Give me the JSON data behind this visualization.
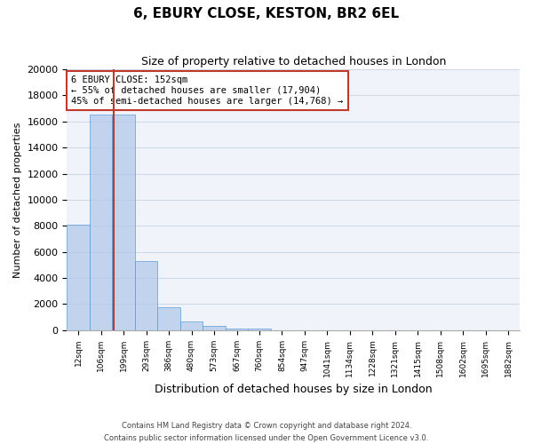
{
  "title": "6, EBURY CLOSE, KESTON, BR2 6EL",
  "subtitle": "Size of property relative to detached houses in London",
  "xlabel": "Distribution of detached houses by size in London",
  "ylabel": "Number of detached properties",
  "bar_values": [
    8100,
    16500,
    16500,
    5300,
    1750,
    700,
    300,
    150,
    100,
    0,
    0,
    0,
    0,
    0,
    0,
    0,
    0,
    0,
    0,
    0
  ],
  "bin_labels": [
    "12sqm",
    "106sqm",
    "199sqm",
    "293sqm",
    "386sqm",
    "480sqm",
    "573sqm",
    "667sqm",
    "760sqm",
    "854sqm",
    "947sqm",
    "1041sqm",
    "1134sqm",
    "1228sqm",
    "1321sqm",
    "1415sqm",
    "1508sqm",
    "1602sqm",
    "1695sqm",
    "1882sqm"
  ],
  "bar_color": "#aec6e8",
  "bar_edge_color": "#5b9bd5",
  "bar_alpha": 0.7,
  "vline_x": 1.55,
  "vline_color": "#c0392b",
  "annotation_box_text": "6 EBURY CLOSE: 152sqm\n← 55% of detached houses are smaller (17,904)\n45% of semi-detached houses are larger (14,768) →",
  "annotation_box_color": "#c0392b",
  "ylim": [
    0,
    20000
  ],
  "yticks": [
    0,
    2000,
    4000,
    6000,
    8000,
    10000,
    12000,
    14000,
    16000,
    18000,
    20000
  ],
  "grid_color": "#d0d8e8",
  "bg_color": "#f0f4fa",
  "footer_line1": "Contains HM Land Registry data © Crown copyright and database right 2024.",
  "footer_line2": "Contains public sector information licensed under the Open Government Licence v3.0."
}
